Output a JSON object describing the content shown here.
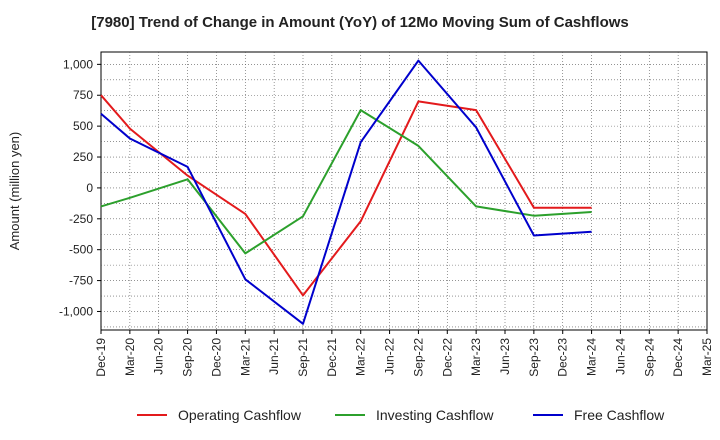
{
  "chart_data": {
    "type": "line",
    "title": "[7980]  Trend of Change in Amount (YoY) of 12Mo Moving Sum of Cashflows",
    "xlabel": "",
    "ylabel": "Amount (million yen)",
    "ylim": [
      -1150,
      1100
    ],
    "yticks": [
      -1000,
      -750,
      -500,
      -250,
      0,
      250,
      500,
      750,
      1000
    ],
    "ytick_labels": [
      "-1,000",
      "-750",
      "-500",
      "-250",
      "0",
      "250",
      "500",
      "750",
      "1,000"
    ],
    "categories": [
      "Dec-19",
      "Mar-20",
      "Jun-20",
      "Sep-20",
      "Dec-20",
      "Mar-21",
      "Jun-21",
      "Sep-21",
      "Dec-21",
      "Mar-22",
      "Jun-22",
      "Sep-22",
      "Dec-22",
      "Mar-23",
      "Jun-23",
      "Sep-23",
      "Dec-23",
      "Mar-24",
      "Jun-24",
      "Sep-24",
      "Dec-24",
      "Mar-25"
    ],
    "grid": true,
    "legend_position": "bottom",
    "series": [
      {
        "name": "Operating Cashflow",
        "color": "#e31a1c",
        "values": [
          750,
          480,
          null,
          100,
          null,
          -210,
          null,
          -870,
          null,
          -270,
          null,
          700,
          null,
          630,
          null,
          -160,
          null,
          -160,
          null,
          null,
          null,
          null
        ]
      },
      {
        "name": "Investing Cashflow",
        "color": "#2ca02c",
        "values": [
          -150,
          -80,
          null,
          70,
          null,
          -530,
          null,
          -230,
          null,
          630,
          null,
          340,
          null,
          -150,
          null,
          -225,
          null,
          -195,
          null,
          null,
          null,
          null
        ]
      },
      {
        "name": "Free Cashflow",
        "color": "#0000cc",
        "values": [
          600,
          400,
          null,
          170,
          null,
          -740,
          null,
          -1100,
          null,
          370,
          null,
          1030,
          null,
          490,
          null,
          -385,
          null,
          -355,
          null,
          null,
          null,
          null
        ]
      }
    ]
  }
}
